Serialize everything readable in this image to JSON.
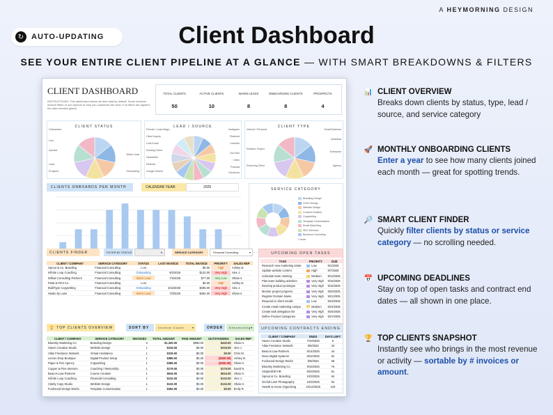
{
  "brand": {
    "prefix": "A",
    "name": "HEYMORNING",
    "suffix": "DESIGN"
  },
  "badge": {
    "label": "AUTO-UPDATING",
    "icon": "refresh-icon"
  },
  "hero": {
    "title": "Client Dashboard",
    "subtitle_bold": "SEE YOUR ENTIRE CLIENT PIPELINE AT A GLANCE",
    "subtitle_rest": " — WITH SMART BREAKDOWNS & FILTERS"
  },
  "dashboard": {
    "title": "CLIENT DASHBOARD",
    "instructions": "INSTRUCTIONS: This dashboard shows all-time data by default. Some sections include filters or sort options to help you customize the view. If no filters are applied, the data remains global.",
    "kpis": [
      {
        "label": "TOTAL CLIENTS",
        "value": "50"
      },
      {
        "label": "ACTIVE CLIENTS",
        "value": "10"
      },
      {
        "label": "WARM LEADS",
        "value": "8"
      },
      {
        "label": "ONBOARDING CLIENTS",
        "value": "8"
      },
      {
        "label": "PROSPECTS",
        "value": "4"
      }
    ],
    "client_status": {
      "title": "CLIENT STATUS",
      "labels": [
        "Onboarded",
        "Lost",
        "Inactive",
        "Warm Lead",
        "Lead",
        "Prospect",
        "Onboarding"
      ]
    },
    "lead_source": {
      "title": "LEAD / SOURCE",
      "labels": [
        "Friends / Lead Magn...",
        "Client Inquiry",
        "Cold Email",
        "Existing Client",
        "Newsletter",
        "Referral",
        "Google Search",
        "Instagram",
        "Pinterest",
        "LinkedIn",
        "YouTube",
        "Other",
        "Podcast",
        "Facebook"
      ]
    },
    "client_type": {
      "title": "CLIENT TYPE",
      "labels": [
        "Internal / Personal",
        "Small Business",
        "Individual",
        "Retainer Project",
        "Enterprise",
        "Recurring Client",
        "Agency"
      ]
    },
    "onboards": {
      "title": "CLIENTS ONBOARDS PER MONTH",
      "calendar_label": "CALENDAR YEAR:",
      "calendar_value": "2025"
    },
    "service_category": {
      "title": "SERVICE CATEGORY",
      "items": [
        "Branding Design",
        "UI/UX Design",
        "Website Design",
        "Content Creation",
        "Copywriting",
        "Template Customization",
        "Email Marketing",
        "SEO Services",
        "Business Consulting"
      ],
      "more": "2 more"
    },
    "finder": {
      "title": "CLIENTS FINDER",
      "filter_label": "FILTER BY STATUS",
      "filter_value": "",
      "service_label": "SERVICE CATEGORY",
      "service_value": "Financial Consulting",
      "columns": [
        "CLIENT / COMPANY",
        "SERVICE CATEGORY",
        "STATUS",
        "LAST INVOICE",
        "TOTAL INVOICE",
        "PRIORITY",
        "SALES REP"
      ],
      "rows": [
        [
          "Sprout & Co. Branding",
          "Financial Consulting",
          "Lost",
          "",
          "$0.00",
          "High",
          "Ashley B."
        ],
        [
          "Infinite Loop Coaching",
          "Financial Consulting",
          "Onboarding",
          "9/2/2025",
          "$132.00",
          "Very High",
          "Alex J."
        ],
        [
          "Willow Consulting Partners",
          "Financial Consulting",
          "Warm Lead",
          "7/2/2025",
          "$77.00",
          "Very Low",
          "Olivia H."
        ],
        [
          "Petal & Print Co.",
          "Financial Consulting",
          "Lost",
          "",
          "$0.00",
          "High",
          "Ashley B."
        ],
        [
          "BoldType Copywriting",
          "Financial Consulting",
          "Onboarding",
          "4/16/2025",
          "$295.00",
          "Very High",
          "Alex J."
        ],
        [
          "Studio by Lane",
          "Financial Consulting",
          "Warm Lead",
          "7/3/2025",
          "$484.00",
          "Very High",
          "Olivia H."
        ]
      ]
    },
    "tasks": {
      "title": "UPCOMING OPEN TASKS",
      "columns": [
        "TASK",
        "PRIORITY",
        "DUE"
      ],
      "rows": [
        [
          "Research new marketing strate",
          "Low",
          "9/1/2025"
        ],
        [
          "Update website content",
          "High",
          "9/7/2025"
        ],
        [
          "Schedule team meeting",
          "Medium",
          "9/12/2025"
        ],
        [
          "Plan team building activities",
          "Very High",
          "9/15/2025"
        ],
        [
          "Develop product prototype",
          "Very High",
          "9/16/2025"
        ],
        [
          "Monitor project progress",
          "Very High",
          "9/20/2025"
        ],
        [
          "Register Domain Name",
          "Very High",
          "9/21/2025"
        ],
        [
          "Respond to client emails",
          "Low",
          "9/23/2025"
        ],
        [
          "Create email marketing campa",
          "Medium",
          "9/24/2025"
        ],
        [
          "Create task delegation list",
          "Very High",
          "9/26/2025"
        ],
        [
          "Define Product Categories",
          "Very High",
          "9/27/2025"
        ]
      ],
      "more": "2 more"
    },
    "top_clients": {
      "title": "TOP CLIENTS OVERVIEW",
      "sort_label": "SORT BY",
      "sort_value": "Invoice Count",
      "order_label": "ORDER",
      "order_value": "Descending",
      "columns": [
        "CLIENT / COMPANY",
        "SERVICE CATEGORY",
        "INVOICES",
        "TOTAL AMOUNT",
        "PAID AMOUNT",
        "OUTSTANDING",
        "SALES REP"
      ],
      "rows": [
        [
          "BlueSky Marketing Co.",
          "Branding Design",
          "3",
          "$1,320.00",
          "$880.00",
          "$440.00",
          "Olivia H."
        ],
        [
          "Haven Creative Studio",
          "Website Design",
          "1",
          "$319.00",
          "$0.00",
          "$319.00",
          "Alex J."
        ],
        [
          "Atlas Freelance Network",
          "Virtual Assistance",
          "1",
          "$319.00",
          "$0.00",
          "$0.00",
          "Chris M."
        ],
        [
          "Lemon Drop Boutique",
          "Digital Product Setup",
          "1",
          "$385.00",
          "$0.00",
          "($330.00)",
          "Ashley B."
        ],
        [
          "Paper & Pen Agency",
          "Copywriting",
          "1",
          "$385.00",
          "$0.00",
          "($330.00)",
          "Olivia H."
        ],
        [
          "Copper & Pine Interiors",
          "Coaching / Mentorship",
          "1",
          "$176.00",
          "$0.00",
          "$176.00",
          "David N."
        ],
        [
          "Beacon Law Partners",
          "Course Creation",
          "1",
          "$616.00",
          "$0.00",
          "$616.00",
          "Olivia H."
        ],
        [
          "Infinite Loop Coaching",
          "Financial Consulting",
          "1",
          "$132.00",
          "$0.00",
          "$132.00",
          "Alex J."
        ],
        [
          "Clarity Copy Studio",
          "Website Design",
          "1",
          "$132.00",
          "$0.00",
          "$132.00",
          "Olivia H."
        ],
        [
          "Foxhound Design Works",
          "Template Customization",
          "1",
          "$352.00",
          "$0.00",
          "$0.00",
          "Emily R."
        ]
      ]
    },
    "contracts": {
      "title": "UPCOMING CONTRACTS ENDING",
      "columns": [
        "CLIENT / COMPANY",
        "ENDS",
        "DAYS LEFT"
      ],
      "rows": [
        [
          "Haven Creative Studio",
          "7/10/2025",
          "9"
        ],
        [
          "Atlas Freelance Network",
          "8/5/2025",
          "34"
        ],
        [
          "Beacon Law Partners",
          "8/14/2025",
          "44"
        ],
        [
          "Nova Digital Systems",
          "8/22/2025",
          "52"
        ],
        [
          "Foxhound Design Works",
          "9/8/2025",
          "69"
        ],
        [
          "BlueSky Marketing Co.",
          "9/15/2025",
          "76"
        ],
        [
          "SimpleShift HR",
          "9/20/2025",
          "81"
        ],
        [
          "Sprout & Co. Branding",
          "10/3/2025",
          "94"
        ],
        [
          "Orchid Lane Photography",
          "10/3/2025",
          "94"
        ],
        [
          "Hearth & Home Organizing",
          "10/12/2025",
          "103"
        ]
      ]
    }
  },
  "features": [
    {
      "icon": "chart-icon",
      "glyph": "📊",
      "title": "CLIENT OVERVIEW",
      "text_before": "Breaks down clients by status, type, lead / source, and service category",
      "highlight": "",
      "text_after": ""
    },
    {
      "icon": "rocket-icon",
      "glyph": "🚀",
      "title": "MONTHLY ONBOARDING CLIENTS",
      "text_before": "",
      "highlight": "Enter a year",
      "text_after": " to see how many clients joined each month — great for spotting trends."
    },
    {
      "icon": "magnifier-icon",
      "glyph": "🔎",
      "title": "SMART CLIENT FINDER",
      "text_before": "Quickly ",
      "highlight": "filter clients by status or service category",
      "text_after": " — no scrolling needed."
    },
    {
      "icon": "calendar-icon",
      "glyph": "📅",
      "title": "UPCOMING DEADLINES",
      "text_before": "Stay on top of open tasks and contract end dates — all shown in one place.",
      "highlight": "",
      "text_after": ""
    },
    {
      "icon": "trophy-icon",
      "glyph": "🏆",
      "title": "TOP CLIENTS SNAPSHOT",
      "text_before": "Instantly see who brings in the most revenue or activity — ",
      "highlight": "sortable by # invoices or amount",
      "text_after": "."
    }
  ],
  "colors": {
    "accent": "#1d4fa8",
    "pie": [
      "#bcd6f2",
      "#8fb8e6",
      "#f6c9a6",
      "#f3e3a0",
      "#d8c7ef",
      "#b8e0d2",
      "#f2b8c6",
      "#c9e3b1",
      "#a9c8f0",
      "#e6d1b8",
      "#cfd8e8",
      "#f0d6e8",
      "#d0ecf7",
      "#e8e0c8"
    ]
  },
  "chart_data": {
    "type": "bar",
    "categories": [
      "",
      "",
      "",
      "",
      "",
      "",
      "",
      "",
      "",
      "",
      "",
      ""
    ],
    "values": [
      1,
      3,
      3,
      6,
      7,
      6,
      6,
      6,
      5,
      3,
      3,
      0
    ],
    "ylim": [
      0,
      8
    ]
  }
}
